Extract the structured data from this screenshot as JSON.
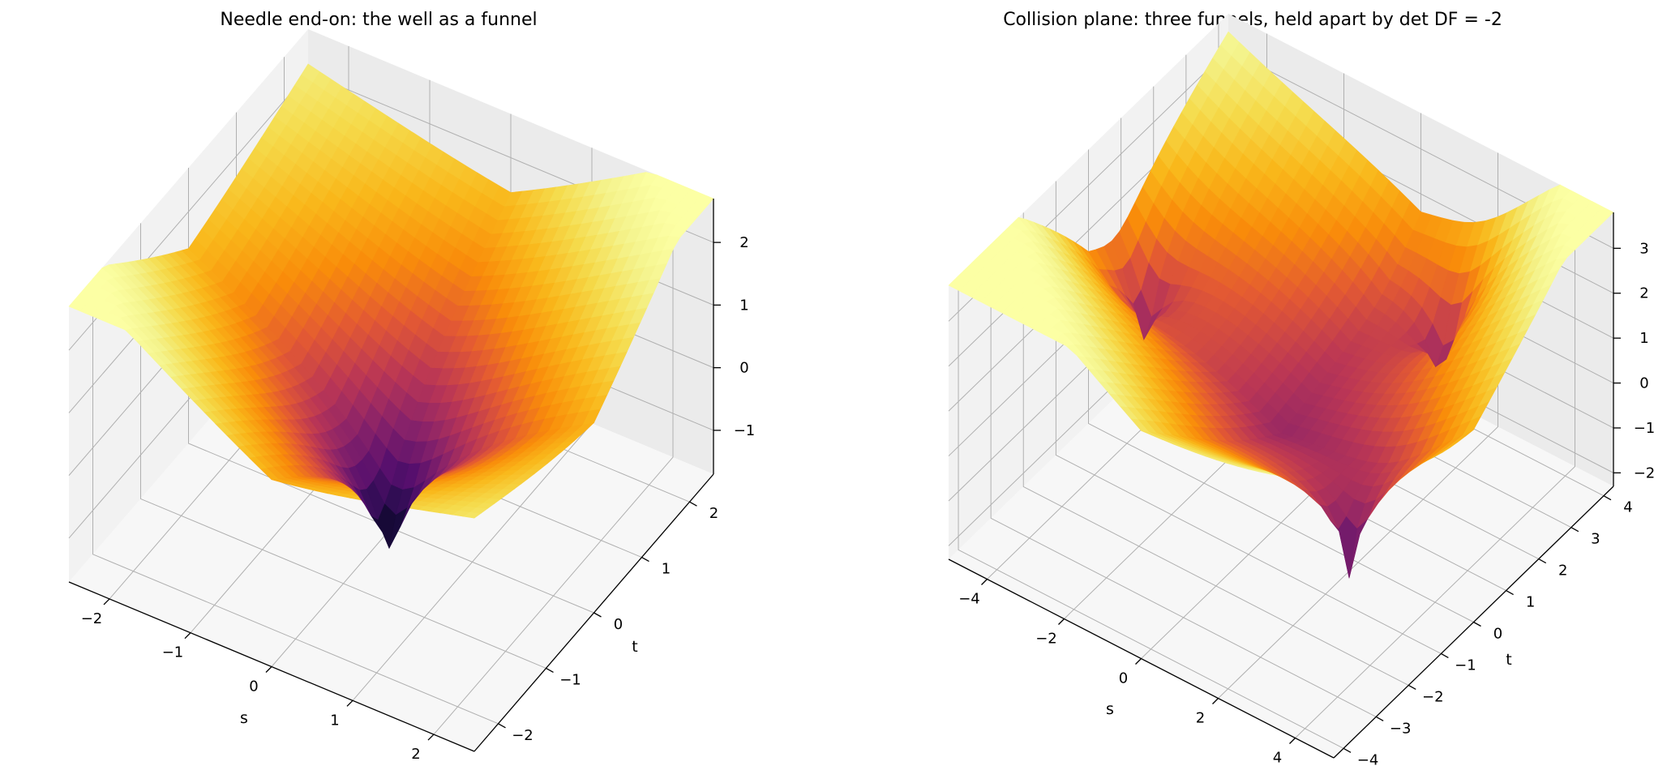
{
  "chart_data": [
    {
      "type": "surface3d",
      "title": "Needle end-on: the well as a funnel",
      "xlabel": "s",
      "ylabel": "t",
      "zlabel": "",
      "xlim": [
        -2.5,
        2.5
      ],
      "ylim": [
        -2.5,
        2.5
      ],
      "zlim": [
        -1.7,
        2.7
      ],
      "xticks": [
        -2,
        -1,
        0,
        1,
        2
      ],
      "yticks": [
        -2,
        -1,
        0,
        1,
        2
      ],
      "zticks": [
        -1,
        0,
        1,
        2
      ],
      "colormap": "inferno",
      "funnels": [
        [
          0.15,
          -0.3
        ]
      ],
      "grid": true
    },
    {
      "type": "surface3d",
      "title": "Collision plane: three funnels, held apart by det DF = -2",
      "xlabel": "s",
      "ylabel": "t",
      "zlabel": "",
      "xlim": [
        -5,
        5
      ],
      "ylim": [
        -4.3,
        4.3
      ],
      "zlim": [
        -2.3,
        3.8
      ],
      "xticks": [
        -4,
        -2,
        0,
        2,
        4
      ],
      "yticks": [
        -4,
        -3,
        -2,
        -1,
        0,
        1,
        2,
        3,
        4
      ],
      "zticks": [
        -2,
        -1,
        0,
        1,
        2,
        3
      ],
      "colormap": "inferno",
      "funnels": [
        [
          -4.2,
          0.8
        ],
        [
          2.8,
          -1.2
        ],
        [
          1.5,
          3.2
        ]
      ],
      "grid": true
    }
  ]
}
